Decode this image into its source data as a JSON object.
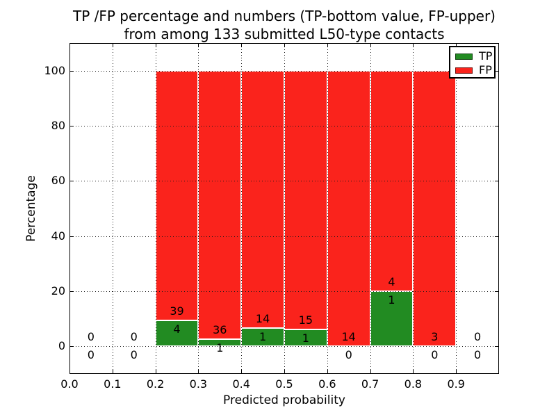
{
  "figure": {
    "title_line1": "TP /FP percentage and numbers (TP-bottom value, FP-upper)",
    "title_line2": "from among 133 submitted L50-type contacts",
    "xlabel": "Predicted probability",
    "ylabel": "Percentage"
  },
  "legend": {
    "items": [
      {
        "label": "TP",
        "color": "#228b22"
      },
      {
        "label": "FP",
        "color": "#fa231c"
      }
    ]
  },
  "chart_data": {
    "type": "bar",
    "stacked": true,
    "normalized": "each non-empty bin's TP+FP stack is drawn to 100%",
    "annotation_rule": "FP count printed above the TP/FP boundary, TP count printed below it",
    "title": "TP /FP percentage and numbers (TP-bottom value, FP-upper) from among 133 submitted L50-type contacts",
    "xlabel": "Predicted probability",
    "ylabel": "Percentage",
    "xlim": [
      0.0,
      1.0
    ],
    "ylim": [
      -10,
      110
    ],
    "xticks": [
      "0.0",
      "0.1",
      "0.2",
      "0.3",
      "0.4",
      "0.5",
      "0.6",
      "0.7",
      "0.8",
      "0.9"
    ],
    "yticks": [
      0,
      20,
      40,
      60,
      80,
      100
    ],
    "bin_width": 0.1,
    "grid": "dotted, drawn above bars",
    "legend_position": "upper right",
    "total_contacts": 133,
    "series": [
      {
        "name": "TP",
        "color": "#228b22"
      },
      {
        "name": "FP",
        "color": "#fa231c"
      }
    ],
    "bins": [
      {
        "x_start": 0.0,
        "tp": 0,
        "fp": 0
      },
      {
        "x_start": 0.1,
        "tp": 0,
        "fp": 0
      },
      {
        "x_start": 0.2,
        "tp": 4,
        "fp": 39
      },
      {
        "x_start": 0.3,
        "tp": 1,
        "fp": 36
      },
      {
        "x_start": 0.4,
        "tp": 1,
        "fp": 14
      },
      {
        "x_start": 0.5,
        "tp": 1,
        "fp": 15
      },
      {
        "x_start": 0.6,
        "tp": 0,
        "fp": 14
      },
      {
        "x_start": 0.7,
        "tp": 1,
        "fp": 4
      },
      {
        "x_start": 0.8,
        "tp": 0,
        "fp": 3
      },
      {
        "x_start": 0.9,
        "tp": 0,
        "fp": 0
      }
    ]
  }
}
